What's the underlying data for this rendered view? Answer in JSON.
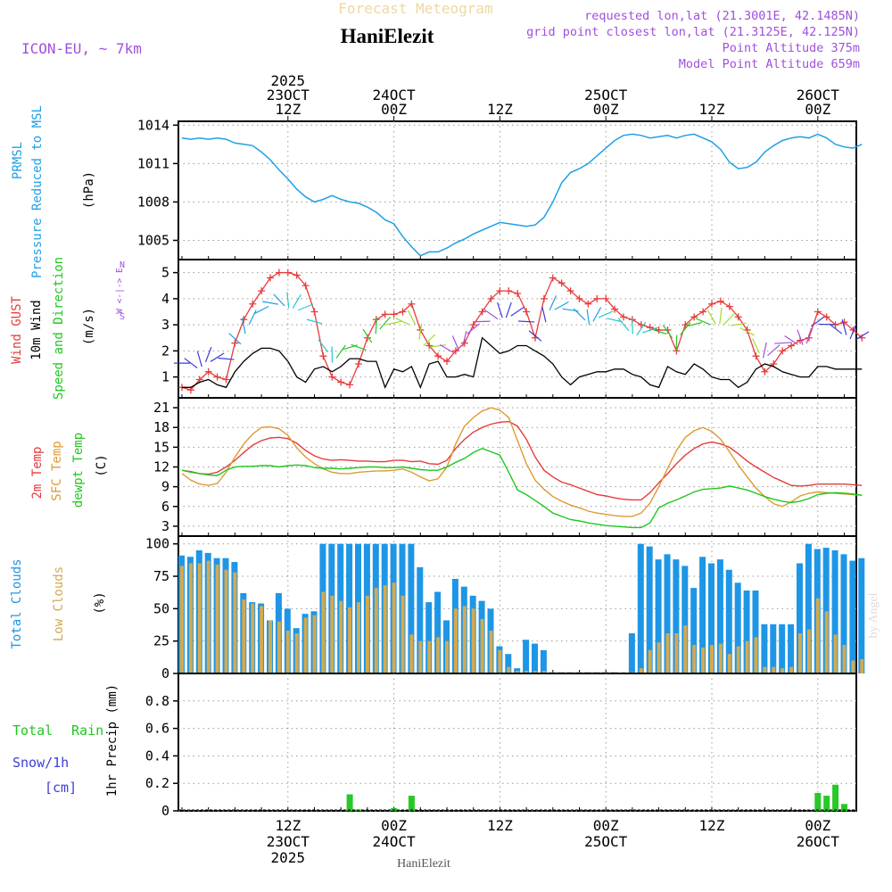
{
  "header": {
    "title_faded": "Forecast Meteogram",
    "station": "HaniElezit",
    "model": "ICON-EU, ~ 7km",
    "requested": "requested lon,lat (21.3001E, 42.1485N)",
    "grid_point": "grid point closest lon,lat (21.3125E, 42.125N)",
    "point_altitude": "Point Altitude 375m",
    "model_altitude": "Model Point Altitude 659m",
    "footer_station": "HaniElezit",
    "watermark": "by Angel"
  },
  "colors": {
    "pressure": "#1ea0e6",
    "gust": "#e63c3c",
    "wind": "#000000",
    "temp2m": "#e63c3c",
    "sfc": "#dc9b32",
    "dewpt": "#1ec81e",
    "total_clouds": "#1e96e6",
    "low_clouds": "#d2aa50",
    "rain": "#28c828",
    "snow": "#3c3cdc",
    "label_purple": "#a050dc"
  },
  "time_axis": {
    "top": [
      {
        "hour": 12,
        "lines": [
          "2025",
          "23OCT",
          "12Z"
        ]
      },
      {
        "hour": 24,
        "lines": [
          "24OCT",
          "00Z"
        ]
      },
      {
        "hour": 36,
        "lines": [
          "12Z"
        ]
      },
      {
        "hour": 48,
        "lines": [
          "25OCT",
          "00Z"
        ]
      },
      {
        "hour": 60,
        "lines": [
          "12Z"
        ]
      },
      {
        "hour": 72,
        "lines": [
          "26OCT",
          "00Z"
        ]
      }
    ],
    "bottom": [
      {
        "hour": 12,
        "lines": [
          "12Z",
          "23OCT",
          "2025"
        ]
      },
      {
        "hour": 24,
        "lines": [
          "00Z",
          "24OCT"
        ]
      },
      {
        "hour": 36,
        "lines": [
          "12Z"
        ]
      },
      {
        "hour": 48,
        "lines": [
          "00Z",
          "25OCT"
        ]
      },
      {
        "hour": 60,
        "lines": [
          "12Z"
        ]
      },
      {
        "hour": 72,
        "lines": [
          "00Z",
          "26OCT"
        ]
      }
    ]
  },
  "panels": {
    "pressure": {
      "label1": "PRMSL",
      "label2": "Pressure Reduced to MSL",
      "unit": "(hPa)"
    },
    "wind": {
      "label_gust": "Wind GUST",
      "label_wind": "10m Wind",
      "label_speed": "Speed and Direction",
      "unit": "(m/s)",
      "compass_n": "N",
      "compass_s": "S",
      "compass_we": "W <-|-> E"
    },
    "temp": {
      "label_2m": "2m Temp",
      "label_sfc": "SFC Temp",
      "label_dew": "dewpt Temp",
      "unit": "(C)"
    },
    "clouds": {
      "label_total": "Total Clouds",
      "label_low": "Low Clouds",
      "unit": "(%)"
    },
    "precip": {
      "label_total": "Total",
      "label_rain": "Rain",
      "label_snow": "Snow/1h",
      "label_cm": "[cm]",
      "unit": "1hr Precip (mm)"
    }
  },
  "chart_data": [
    {
      "type": "line",
      "title": "PRMSL Pressure Reduced to MSL",
      "ylabel": "(hPa)",
      "x_hours": [
        0,
        1,
        2,
        3,
        4,
        5,
        6,
        7,
        8,
        9,
        10,
        11,
        12,
        13,
        14,
        15,
        16,
        17,
        18,
        19,
        20,
        21,
        22,
        23,
        24,
        25,
        26,
        27,
        28,
        29,
        30,
        31,
        32,
        33,
        34,
        35,
        36,
        37,
        38,
        39,
        40,
        41,
        42,
        43,
        44,
        45,
        46,
        47,
        48,
        49,
        50,
        51,
        52,
        53,
        54,
        55,
        56,
        57,
        58,
        59,
        60,
        61,
        62,
        63,
        64,
        65,
        66,
        67,
        68,
        69,
        70,
        71,
        72,
        73,
        74,
        75,
        76,
        77
      ],
      "ylim": [
        1003.5,
        1014.3
      ],
      "yticks": [
        1005,
        1008,
        1011,
        1014
      ],
      "series": [
        {
          "name": "PRMSL",
          "values": [
            1013.0,
            1012.9,
            1013.0,
            1012.9,
            1013.0,
            1012.9,
            1012.6,
            1012.5,
            1012.4,
            1011.9,
            1011.3,
            1010.5,
            1009.8,
            1009.0,
            1008.4,
            1008.0,
            1008.2,
            1008.5,
            1008.2,
            1008.0,
            1007.9,
            1007.6,
            1007.2,
            1006.6,
            1006.3,
            1005.3,
            1004.5,
            1003.8,
            1004.1,
            1004.1,
            1004.4,
            1004.8,
            1005.1,
            1005.5,
            1005.8,
            1006.1,
            1006.4,
            1006.3,
            1006.2,
            1006.1,
            1006.2,
            1006.8,
            1008.0,
            1009.5,
            1010.3,
            1010.6,
            1011.0,
            1011.6,
            1012.2,
            1012.8,
            1013.2,
            1013.3,
            1013.2,
            1013.0,
            1013.1,
            1013.2,
            1013.0,
            1013.2,
            1013.3,
            1013.0,
            1012.7,
            1012.1,
            1011.1,
            1010.6,
            1010.7,
            1011.1,
            1011.9,
            1012.4,
            1012.8,
            1013.0,
            1013.1,
            1013.0,
            1013.3,
            1013.0,
            1012.5,
            1012.3,
            1012.2,
            1012.5
          ]
        }
      ]
    },
    {
      "type": "line",
      "title": "Wind GUST / 10m Wind Speed and Direction",
      "ylabel": "(m/s)",
      "x_hours": [
        0,
        1,
        2,
        3,
        4,
        5,
        6,
        7,
        8,
        9,
        10,
        11,
        12,
        13,
        14,
        15,
        16,
        17,
        18,
        19,
        20,
        21,
        22,
        23,
        24,
        25,
        26,
        27,
        28,
        29,
        30,
        31,
        32,
        33,
        34,
        35,
        36,
        37,
        38,
        39,
        40,
        41,
        42,
        43,
        44,
        45,
        46,
        47,
        48,
        49,
        50,
        51,
        52,
        53,
        54,
        55,
        56,
        57,
        58,
        59,
        60,
        61,
        62,
        63,
        64,
        65,
        66,
        67,
        68,
        69,
        70,
        71,
        72,
        73,
        74,
        75,
        76,
        77
      ],
      "ylim": [
        0.2,
        5.5
      ],
      "yticks": [
        1,
        2,
        3,
        4,
        5
      ],
      "series": [
        {
          "name": "Wind GUST",
          "values": [
            0.6,
            0.5,
            0.9,
            1.2,
            1.0,
            0.9,
            2.3,
            3.2,
            3.8,
            4.3,
            4.8,
            5.0,
            5.0,
            4.9,
            4.5,
            3.5,
            1.8,
            1.0,
            0.8,
            0.7,
            1.5,
            2.5,
            3.2,
            3.4,
            3.4,
            3.5,
            3.8,
            2.8,
            2.2,
            1.8,
            1.6,
            2.0,
            2.3,
            3.0,
            3.5,
            4.0,
            4.3,
            4.3,
            4.2,
            3.5,
            2.5,
            4.0,
            4.8,
            4.6,
            4.3,
            4.0,
            3.8,
            4.0,
            4.0,
            3.6,
            3.3,
            3.2,
            3.0,
            2.9,
            2.8,
            2.8,
            2.0,
            3.0,
            3.3,
            3.5,
            3.8,
            3.9,
            3.7,
            3.3,
            2.8,
            1.8,
            1.2,
            1.5,
            2.0,
            2.2,
            2.4,
            2.5,
            3.5,
            3.3,
            3.0,
            3.1,
            2.8,
            2.5
          ]
        },
        {
          "name": "10m Wind",
          "values": [
            0.6,
            0.6,
            0.8,
            0.9,
            0.7,
            0.6,
            1.2,
            1.6,
            1.9,
            2.1,
            2.1,
            2.0,
            1.6,
            1.0,
            0.8,
            1.3,
            1.4,
            1.2,
            1.4,
            1.7,
            1.7,
            1.6,
            1.6,
            0.6,
            1.3,
            1.2,
            1.4,
            0.6,
            1.5,
            1.6,
            1.0,
            1.0,
            1.1,
            1.0,
            2.5,
            2.2,
            1.9,
            2.0,
            2.2,
            2.2,
            2.0,
            1.8,
            1.5,
            1.0,
            0.7,
            1.0,
            1.1,
            1.2,
            1.2,
            1.3,
            1.3,
            1.1,
            1.0,
            0.7,
            0.6,
            1.4,
            1.2,
            1.1,
            1.5,
            1.3,
            1.0,
            0.9,
            0.9,
            0.6,
            0.8,
            1.3,
            1.5,
            1.4,
            1.2,
            1.1,
            1.0,
            1.0,
            1.4,
            1.4,
            1.3,
            1.3,
            1.3,
            1.3
          ]
        }
      ]
    },
    {
      "type": "line",
      "title": "2m Temp / SFC Temp / dewpt Temp",
      "ylabel": "(C)",
      "x_hours": [
        0,
        1,
        2,
        3,
        4,
        5,
        6,
        7,
        8,
        9,
        10,
        11,
        12,
        13,
        14,
        15,
        16,
        17,
        18,
        19,
        20,
        21,
        22,
        23,
        24,
        25,
        26,
        27,
        28,
        29,
        30,
        31,
        32,
        33,
        34,
        35,
        36,
        37,
        38,
        39,
        40,
        41,
        42,
        43,
        44,
        45,
        46,
        47,
        48,
        49,
        50,
        51,
        52,
        53,
        54,
        55,
        56,
        57,
        58,
        59,
        60,
        61,
        62,
        63,
        64,
        65,
        66,
        67,
        68,
        69,
        70,
        71,
        72,
        73,
        74,
        75,
        76,
        77
      ],
      "ylim": [
        1.5,
        22.5
      ],
      "yticks": [
        3,
        6,
        9,
        12,
        15,
        18,
        21
      ],
      "series": [
        {
          "name": "2m Temp",
          "values": [
            11.5,
            11.3,
            11.0,
            10.9,
            11.2,
            12.0,
            13.0,
            14.2,
            15.3,
            16.0,
            16.4,
            16.5,
            16.3,
            15.6,
            14.5,
            13.7,
            13.2,
            13.0,
            13.1,
            13.0,
            12.9,
            12.9,
            12.8,
            12.8,
            13.0,
            13.0,
            12.8,
            12.9,
            12.5,
            12.4,
            13.0,
            14.8,
            16.2,
            17.3,
            18.0,
            18.5,
            18.8,
            18.9,
            18.2,
            16.2,
            13.5,
            11.5,
            10.5,
            9.7,
            9.3,
            8.8,
            8.3,
            7.8,
            7.6,
            7.3,
            7.1,
            7.0,
            7.0,
            8.1,
            9.6,
            11.0,
            12.5,
            13.8,
            14.8,
            15.5,
            15.8,
            15.5,
            15.0,
            14.0,
            12.9,
            12.0,
            11.2,
            10.4,
            9.8,
            9.2,
            9.1,
            9.2,
            9.4,
            9.4,
            9.4,
            9.4,
            9.3,
            9.2
          ]
        },
        {
          "name": "SFC Temp",
          "values": [
            11.0,
            10.0,
            9.4,
            9.2,
            9.5,
            11.2,
            13.5,
            15.5,
            17.0,
            18.0,
            18.1,
            17.8,
            16.8,
            14.9,
            13.5,
            12.5,
            11.7,
            11.2,
            11.0,
            11.0,
            11.2,
            11.3,
            11.4,
            11.4,
            11.5,
            11.7,
            11.2,
            10.5,
            9.9,
            10.2,
            12.0,
            15.5,
            18.2,
            19.5,
            20.5,
            21.0,
            20.6,
            19.5,
            16.0,
            12.5,
            10.0,
            8.6,
            7.5,
            6.8,
            6.2,
            5.8,
            5.3,
            5.0,
            4.8,
            4.6,
            4.5,
            4.5,
            5.0,
            6.5,
            9.0,
            11.8,
            14.5,
            16.5,
            17.5,
            18.0,
            17.4,
            16.2,
            14.3,
            12.3,
            10.5,
            8.8,
            7.5,
            6.4,
            6.0,
            6.7,
            7.6,
            8.0,
            8.2,
            8.1,
            8.0,
            7.9,
            7.8,
            7.7
          ]
        },
        {
          "name": "dewpt Temp",
          "values": [
            11.5,
            11.2,
            11.0,
            10.8,
            10.7,
            11.5,
            12.0,
            12.1,
            12.1,
            12.2,
            12.2,
            12.0,
            12.2,
            12.3,
            12.2,
            11.9,
            11.8,
            11.8,
            11.7,
            11.8,
            11.9,
            12.0,
            12.0,
            11.9,
            11.9,
            12.0,
            11.8,
            11.6,
            11.5,
            11.5,
            12.0,
            12.7,
            13.3,
            14.2,
            14.8,
            14.3,
            13.8,
            11.2,
            8.5,
            7.8,
            6.9,
            6.0,
            5.0,
            4.5,
            4.0,
            3.8,
            3.5,
            3.3,
            3.1,
            3.0,
            2.9,
            2.8,
            2.8,
            3.5,
            5.8,
            6.5,
            7.0,
            7.6,
            8.2,
            8.6,
            8.7,
            8.8,
            9.1,
            8.8,
            8.5,
            8.0,
            7.5,
            7.1,
            6.8,
            6.6,
            6.8,
            7.2,
            7.8,
            8.0,
            8.1,
            8.0,
            7.9,
            7.7
          ]
        }
      ]
    },
    {
      "type": "bar",
      "title": "Total Clouds / Low Clouds",
      "ylabel": "(%)",
      "x_hours": [
        0,
        1,
        2,
        3,
        4,
        5,
        6,
        7,
        8,
        9,
        10,
        11,
        12,
        13,
        14,
        15,
        16,
        17,
        18,
        19,
        20,
        21,
        22,
        23,
        24,
        25,
        26,
        27,
        28,
        29,
        30,
        31,
        32,
        33,
        34,
        35,
        36,
        37,
        38,
        39,
        40,
        41,
        42,
        43,
        44,
        45,
        46,
        47,
        48,
        49,
        50,
        51,
        52,
        53,
        54,
        55,
        56,
        57,
        58,
        59,
        60,
        61,
        62,
        63,
        64,
        65,
        66,
        67,
        68,
        69,
        70,
        71,
        72,
        73,
        74,
        75,
        76,
        77
      ],
      "ylim": [
        0,
        106
      ],
      "yticks": [
        0,
        25,
        50,
        75,
        100
      ],
      "series": [
        {
          "name": "Total Clouds",
          "values": [
            91,
            90,
            95,
            93,
            89,
            89,
            86,
            62,
            55,
            54,
            41,
            62,
            50,
            35,
            46,
            48,
            100,
            100,
            100,
            100,
            100,
            100,
            100,
            100,
            100,
            100,
            100,
            82,
            55,
            63,
            41,
            73,
            67,
            60,
            56,
            50,
            21,
            15,
            4,
            26,
            23,
            18,
            1,
            1,
            1,
            1,
            1,
            1,
            1,
            1,
            0,
            31,
            100,
            98,
            88,
            92,
            88,
            83,
            66,
            90,
            85,
            88,
            80,
            70,
            64,
            64,
            38,
            38,
            38,
            38,
            85,
            100,
            96,
            97,
            95,
            92,
            87,
            89
          ]
        },
        {
          "name": "Low Clouds",
          "values": [
            83,
            85,
            85,
            87,
            84,
            80,
            78,
            57,
            54,
            52,
            41,
            40,
            33,
            31,
            43,
            45,
            63,
            60,
            56,
            51,
            55,
            60,
            66,
            68,
            70,
            60,
            30,
            25,
            25,
            28,
            25,
            50,
            52,
            50,
            42,
            33,
            18,
            5,
            2,
            2,
            2,
            2,
            1,
            1,
            1,
            1,
            1,
            1,
            1,
            1,
            1,
            1,
            4,
            18,
            24,
            31,
            31,
            37,
            22,
            20,
            22,
            23,
            15,
            21,
            25,
            28,
            5,
            5,
            4,
            5,
            31,
            34,
            58,
            48,
            30,
            22,
            10,
            11
          ]
        }
      ]
    },
    {
      "type": "bar",
      "title": "1hr Precip (mm)",
      "ylabel": "1hr Precip (mm)",
      "x_hours": [
        19,
        20,
        24,
        26,
        72,
        73,
        74,
        75
      ],
      "ylim": [
        0,
        1.0
      ],
      "yticks": [
        0,
        0.2,
        0.4,
        0.6,
        0.8
      ],
      "series": [
        {
          "name": "Total Rain",
          "values": [
            0.12,
            0.01,
            0.02,
            0.11,
            0.13,
            0.11,
            0.19,
            0.05
          ]
        }
      ]
    }
  ]
}
